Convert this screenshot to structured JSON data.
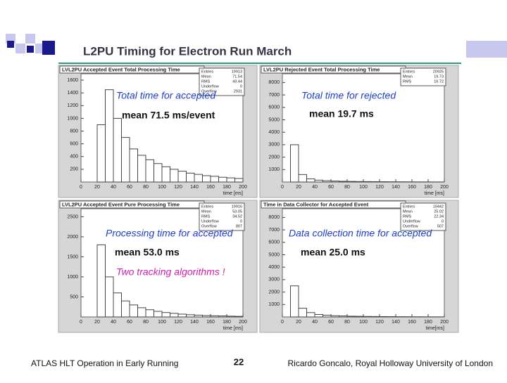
{
  "slide": {
    "title": "L2PU Timing for Electron Run March",
    "footer_left": "ATLAS HLT Operation in Early Running",
    "page_number": "22",
    "footer_right": "Ricardo Goncalo, Royal Holloway University of London"
  },
  "chart_data": [
    {
      "type": "histogram",
      "title": "LVL2PU Accepted Event Total Processing Time",
      "x_label": "time [ms]",
      "annotations": [
        {
          "text": "Total time for accepted",
          "color": "#1f3fd0"
        },
        {
          "text": "mean 71.5 ms/event",
          "color": "#111111"
        }
      ],
      "stats": [
        {
          "label": "Entries",
          "value": 19913
        },
        {
          "label": "Mean",
          "value": 71.54
        },
        {
          "label": "RMS",
          "value": 43.44
        },
        {
          "label": "Underflow",
          "value": 0
        },
        {
          "label": "Overflow",
          "value": 2931
        }
      ],
      "bins": [
        0,
        10,
        20,
        30,
        40,
        50,
        60,
        70,
        80,
        90,
        100,
        110,
        120,
        130,
        140,
        150,
        160,
        170,
        180,
        190,
        200
      ],
      "values": [
        0,
        0,
        900,
        1450,
        1000,
        700,
        520,
        420,
        350,
        290,
        240,
        200,
        170,
        140,
        120,
        100,
        90,
        75,
        65,
        55
      ],
      "color": "#444444",
      "xlim": [
        0,
        200
      ],
      "xticks": [
        0,
        20,
        40,
        60,
        80,
        100,
        120,
        140,
        160,
        180,
        200
      ],
      "ylim": [
        0,
        1700
      ],
      "yticks": [
        200,
        400,
        600,
        800,
        1000,
        1200,
        1400,
        1600
      ]
    },
    {
      "type": "histogram",
      "title": "LVL2PU Rejected Event Total Processing Time",
      "x_label": "time [ms]",
      "annotations": [
        {
          "text": "Total time for rejected",
          "color": "#1f3fd0"
        },
        {
          "text": "mean 19.7 ms",
          "color": "#111111"
        }
      ],
      "stats": [
        {
          "label": "Entries",
          "value": 20925
        },
        {
          "label": "Mean",
          "value": 19.73
        },
        {
          "label": "RMS",
          "value": 16.72
        }
      ],
      "bins": [
        0,
        10,
        20,
        30,
        40,
        50,
        60,
        70,
        80,
        90,
        100,
        110,
        120,
        130,
        140,
        150,
        160,
        170,
        180,
        190,
        200
      ],
      "values": [
        0,
        3000,
        600,
        250,
        150,
        100,
        80,
        60,
        50,
        40,
        35,
        30,
        25,
        20,
        18,
        15,
        12,
        10,
        8,
        6
      ],
      "color": "#444444",
      "xlim": [
        0,
        200
      ],
      "xticks": [
        0,
        20,
        40,
        60,
        80,
        100,
        120,
        140,
        160,
        180,
        200
      ],
      "ylim": [
        0,
        8700
      ],
      "yticks": [
        1000,
        2000,
        3000,
        4000,
        5000,
        6000,
        7000,
        8000
      ]
    },
    {
      "type": "histogram",
      "title": "LVL2PU Accepted Event Pure Processing Time",
      "x_label": "time [ms]",
      "annotations": [
        {
          "text": "Processing time for accepted",
          "color": "#1f3fd0"
        },
        {
          "text": "mean 53.0 ms",
          "color": "#111111"
        },
        {
          "text": "Two tracking algorithms !",
          "color": "#d020b0"
        }
      ],
      "stats": [
        {
          "label": "Entries",
          "value": 19916
        },
        {
          "label": "Mean",
          "value": 53.05
        },
        {
          "label": "RMS",
          "value": 34.52
        },
        {
          "label": "Underflow",
          "value": 0
        },
        {
          "label": "Overflow",
          "value": 807
        }
      ],
      "bins": [
        0,
        10,
        20,
        30,
        40,
        50,
        60,
        70,
        80,
        90,
        100,
        110,
        120,
        130,
        140,
        150,
        160,
        170,
        180,
        190,
        200
      ],
      "values": [
        0,
        0,
        1800,
        1000,
        600,
        400,
        300,
        230,
        180,
        140,
        110,
        90,
        70,
        55,
        45,
        35,
        30,
        25,
        20,
        15
      ],
      "color": "#444444",
      "xlim": [
        0,
        200
      ],
      "xticks": [
        0,
        20,
        40,
        60,
        80,
        100,
        120,
        140,
        160,
        180,
        200
      ],
      "ylim": [
        0,
        2700
      ],
      "yticks": [
        500,
        1000,
        1500,
        2000,
        2500
      ]
    },
    {
      "type": "histogram",
      "title": "Time in Data Collector for Accepted Event",
      "x_label": "time[ms]",
      "annotations": [
        {
          "text": "Data collection time for accepted",
          "color": "#1f3fd0"
        },
        {
          "text": "mean 25.0 ms",
          "color": "#111111"
        }
      ],
      "stats": [
        {
          "label": "Entries",
          "value": 19442
        },
        {
          "label": "Mean",
          "value": 25.02
        },
        {
          "label": "RMS",
          "value": 22.34
        },
        {
          "label": "Underflow",
          "value": 0
        },
        {
          "label": "Overflow",
          "value": 507
        }
      ],
      "bins": [
        0,
        10,
        20,
        30,
        40,
        50,
        60,
        70,
        80,
        90,
        100,
        110,
        120,
        130,
        140,
        150,
        160,
        170,
        180,
        190,
        200
      ],
      "values": [
        0,
        2500,
        700,
        350,
        200,
        140,
        100,
        80,
        60,
        50,
        40,
        35,
        30,
        25,
        20,
        18,
        15,
        12,
        10,
        8
      ],
      "color": "#444444",
      "xlim": [
        0,
        200
      ],
      "xticks": [
        0,
        20,
        40,
        60,
        80,
        100,
        120,
        140,
        160,
        180,
        200
      ],
      "ylim": [
        0,
        8700
      ],
      "yticks": [
        1000,
        2000,
        3000,
        4000,
        5000,
        6000,
        7000,
        8000
      ]
    }
  ]
}
